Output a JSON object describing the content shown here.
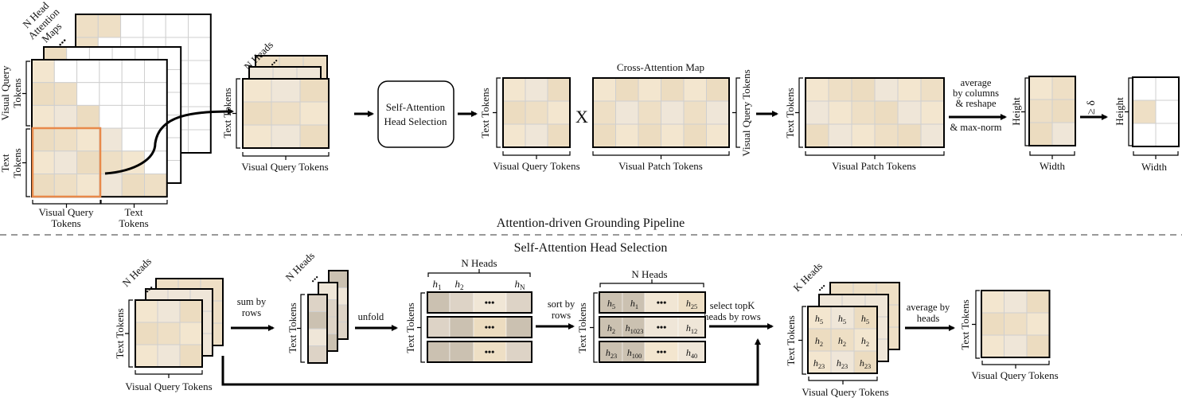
{
  "palette": {
    "beige_light": "#f3e6cf",
    "beige": "#eedfc5",
    "beige_mid": "#ecdcc0",
    "beige_pale": "#efe6d8",
    "gray_light": "#ddd3c6",
    "gray_dark": "#cbc1b1",
    "highlight": "#e8894a",
    "grid_line": "#cfcfcf"
  },
  "top": {
    "attention_maps_label": [
      "N Head",
      "Attention",
      "Maps"
    ],
    "vq_tokens_stacked": [
      "Visual Query",
      "Tokens"
    ],
    "text_tokens_stacked": [
      "Text",
      "Tokens"
    ],
    "n_heads": "N Heads",
    "text_tokens": "Text Tokens",
    "visual_query_tokens": "Visual Query Tokens",
    "head_selection_box": [
      "Self-Attention",
      "Head Selection"
    ],
    "multiply": "X",
    "cross_attention_title": "Cross-Attention Map",
    "visual_patch_tokens": "Visual Patch Tokens",
    "average_step": [
      "average",
      "by columns",
      "& reshape",
      "& max-norm"
    ],
    "height": "Height",
    "width": "Width",
    "threshold": "≥ δ"
  },
  "pipeline_title": "Attention-driven Grounding Pipeline",
  "bottom": {
    "section_title": "Self-Attention Head Selection",
    "n_heads": "N Heads",
    "k_heads": "K Heads",
    "text_tokens": "Text Tokens",
    "visual_query_tokens": "Visual Query Tokens",
    "sum_by_rows": [
      "sum by",
      "rows"
    ],
    "unfold": "unfold",
    "sort_by_rows": [
      "sort by",
      "rows"
    ],
    "select_topk": [
      "select topK",
      "heads by rows"
    ],
    "average_by_heads": [
      "average by",
      "heads"
    ],
    "head_labels": [
      {
        "base": "h",
        "sub": "1"
      },
      {
        "base": "h",
        "sub": "2"
      },
      {
        "base": "h",
        "sub": "N"
      }
    ],
    "sorted_heads": [
      [
        {
          "base": "h",
          "sub": "5"
        },
        {
          "base": "h",
          "sub": "1"
        },
        {
          "base": "h",
          "sub": "25"
        }
      ],
      [
        {
          "base": "h",
          "sub": "2"
        },
        {
          "base": "h",
          "sub": "1023"
        },
        {
          "base": "h",
          "sub": "12"
        }
      ],
      [
        {
          "base": "h",
          "sub": "23"
        },
        {
          "base": "h",
          "sub": "100"
        },
        {
          "base": "h",
          "sub": "40"
        }
      ]
    ],
    "topk_heads": [
      [
        {
          "base": "h",
          "sub": "5"
        },
        {
          "base": "h",
          "sub": "5"
        },
        {
          "base": "h",
          "sub": "5"
        }
      ],
      [
        {
          "base": "h",
          "sub": "2"
        },
        {
          "base": "h",
          "sub": "2"
        },
        {
          "base": "h",
          "sub": "2"
        }
      ],
      [
        {
          "base": "h",
          "sub": "23"
        },
        {
          "base": "h",
          "sub": "23"
        },
        {
          "base": "h",
          "sub": "23"
        }
      ]
    ],
    "ellipsis": "•••"
  }
}
